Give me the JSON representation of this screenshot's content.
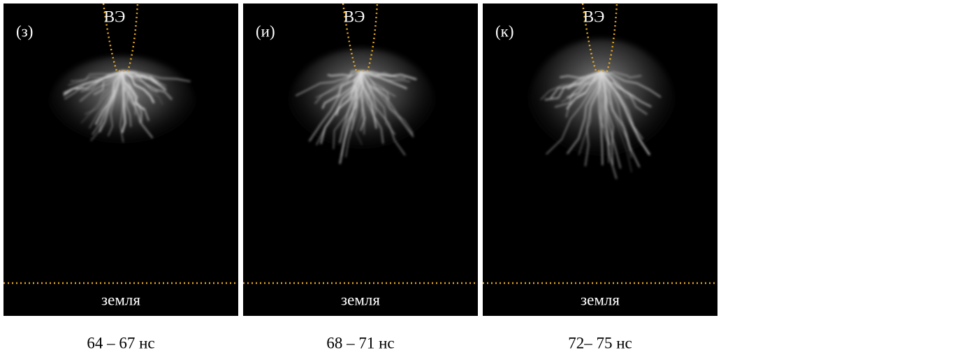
{
  "panels": [
    {
      "label": "(з)",
      "electrode": "ВЭ",
      "ground": "земля",
      "caption": "64 – 67 нс"
    },
    {
      "label": "(и)",
      "electrode": "ВЭ",
      "ground": "земля",
      "caption": "68 – 71 нс"
    },
    {
      "label": "(к)",
      "electrode": "ВЭ",
      "ground": "земля",
      "caption": "72– 75 нс"
    }
  ]
}
